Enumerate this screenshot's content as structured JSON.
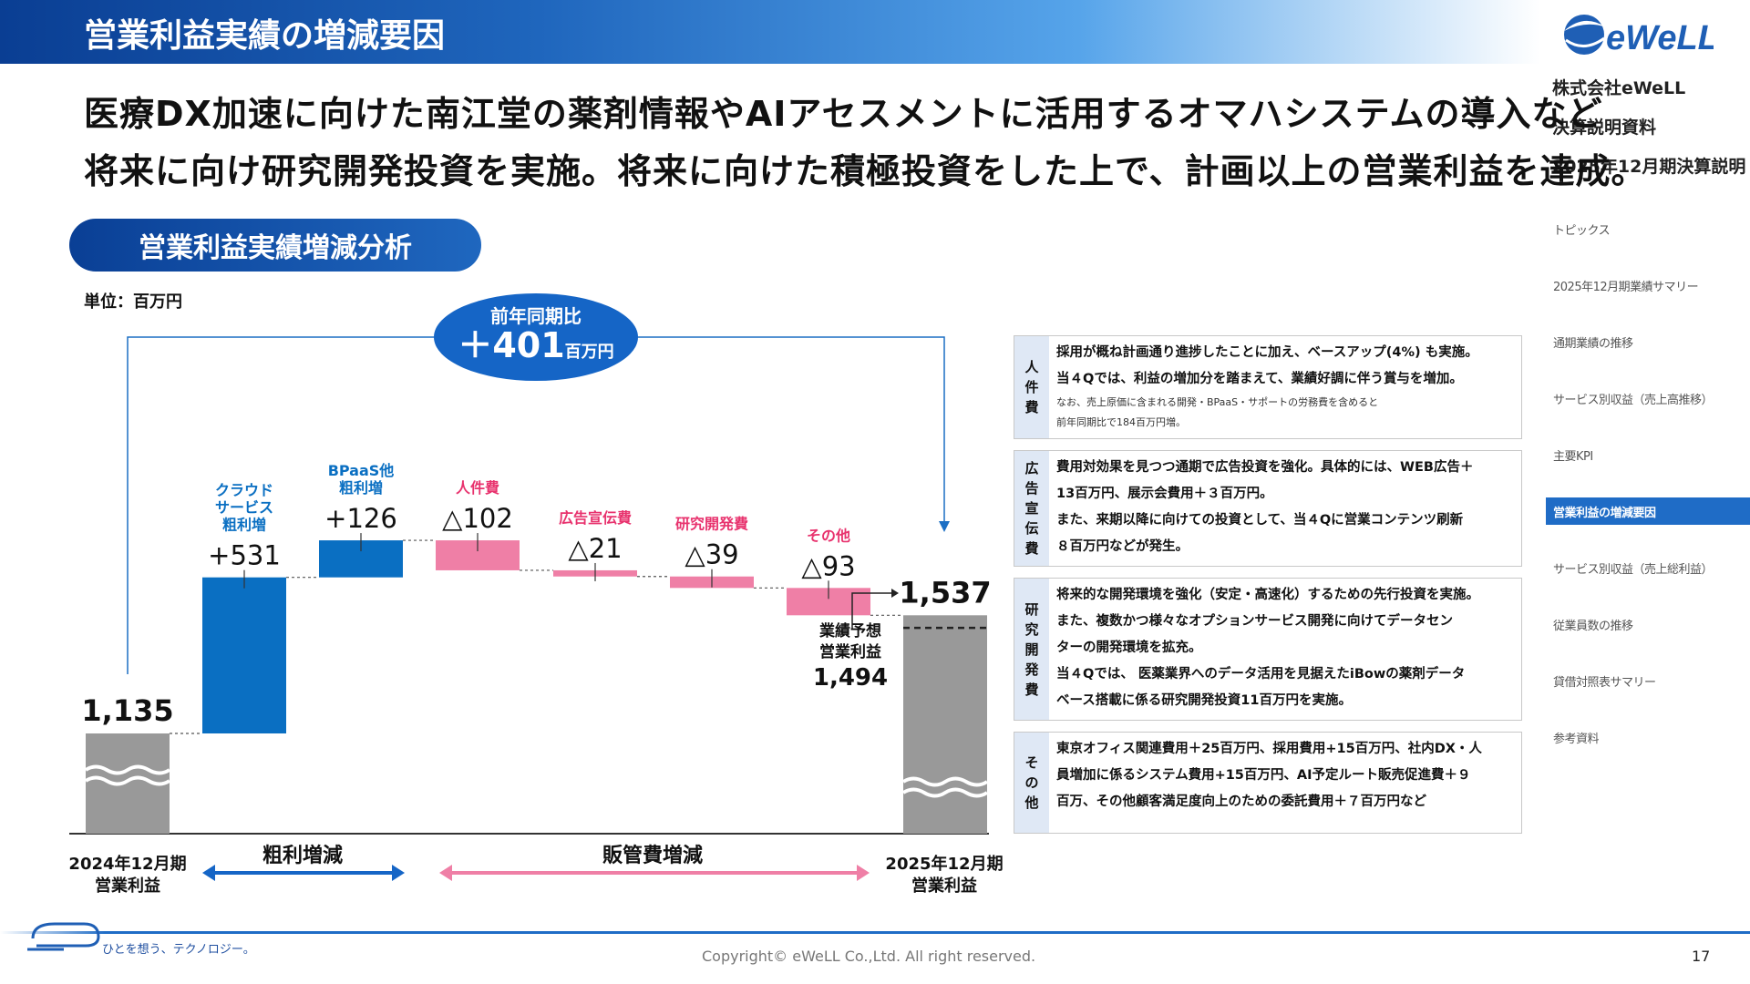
{
  "header": {
    "title": "営業利益実績の増減要因"
  },
  "sidebar": {
    "logo_text": "eWeLL",
    "company": "株式会社eWeLL",
    "doc_type": "決算説明資料",
    "period": "2025年12月期決算説明",
    "nav": [
      {
        "label": "トピックス"
      },
      {
        "label": "2025年12月期業績サマリー"
      },
      {
        "label": "通期業績の推移"
      },
      {
        "label": "サービス別収益（売上高推移）"
      },
      {
        "label": "主要KPI"
      },
      {
        "label": "営業利益の増減要因"
      },
      {
        "label": "サービス別収益（売上総利益）"
      },
      {
        "label": "従業員数の推移"
      },
      {
        "label": "貸借対照表サマリー"
      },
      {
        "label": "参考資料"
      }
    ]
  },
  "headline": {
    "line1": "医療DX加速に向けた南江堂の薬剤情報やAIアセスメントに活用するオマハシステムの導入など",
    "line2": "将来に向け研究開発投資を実施。将来に向けた積極投資をした上で、計画以上の営業利益を達成。"
  },
  "section_title": "営業利益実績増減分析",
  "unit_label": "単位：百万円",
  "yoy": {
    "label": "前年同期比",
    "value": "＋401",
    "unit": "百万円"
  },
  "forecast": {
    "line1": "業績予想",
    "line2": "営業利益",
    "value": "1,494"
  },
  "brackets": {
    "gross": "粗利増減",
    "sga": "販管費増減"
  },
  "chart_data": {
    "type": "waterfall",
    "unit": "百万円",
    "start": {
      "label": "2024年12月期\n営業利益",
      "value": 1135,
      "value_label": "1,135"
    },
    "steps": [
      {
        "label": "クラウド\nサービス\n粗利増",
        "delta": 531,
        "value_label": "+531",
        "color": "#0a6fc2"
      },
      {
        "label": "BPaaS他\n粗利増",
        "delta": 126,
        "value_label": "+126",
        "color": "#0a6fc2"
      },
      {
        "label": "人件費",
        "delta": -102,
        "value_label": "△102",
        "color": "#ef7fa6"
      },
      {
        "label": "広告宣伝費",
        "delta": -21,
        "value_label": "△21",
        "color": "#ef7fa6"
      },
      {
        "label": "研究開発費",
        "delta": -39,
        "value_label": "△39",
        "color": "#ef7fa6"
      },
      {
        "label": "その他",
        "delta": -93,
        "value_label": "△93",
        "color": "#ef7fa6"
      }
    ],
    "end": {
      "label": "2025年12月期\n営業利益",
      "value": 1537,
      "value_label": "1,537"
    },
    "forecast_value": 1494,
    "colors": {
      "total": "#999999",
      "increase": "#0a6fc2",
      "decrease": "#ef7fa6",
      "increase_label": "#0a6fc2",
      "decrease_label": "#e8336e"
    }
  },
  "details": [
    {
      "head": [
        "人",
        "件",
        "費"
      ],
      "lines": [
        "採用が概ね計画通り進捗したことに加え、ベースアップ(4%) も実施。",
        "当４Qでは、利益の増加分を踏まえて、業績好調に伴う賞与を増加。"
      ],
      "notes": [
        "なお、売上原価に含まれる開発・BPaaS・サポートの労務費を含めると",
        "前年同期比で184百万円増。"
      ]
    },
    {
      "head": [
        "広",
        "告",
        "宣",
        "伝",
        "費"
      ],
      "lines": [
        "費用対効果を見つつ通期で広告投資を強化。具体的には、WEB広告＋",
        "13百万円、展示会費用＋３百万円。",
        "また、来期以降に向けての投資として、当４Qに営業コンテンツ刷新",
        "８百万円などが発生。"
      ],
      "notes": []
    },
    {
      "head": [
        "研",
        "究",
        "開",
        "発",
        "費"
      ],
      "lines": [
        "将来的な開発環境を強化（安定・高速化）するための先行投資を実施。",
        "また、複数かつ様々なオプションサービス開発に向けてデータセン",
        "ターの開発環境を拡充。",
        "当４Qでは、 医薬業界へのデータ活用を見据えたiBowの薬剤データ",
        "ベース搭載に係る研究開発投資11百万円を実施。"
      ],
      "notes": []
    },
    {
      "head": [
        "そ",
        "の",
        "他"
      ],
      "lines": [
        "東京オフィス関連費用＋25百万円、採用費用+15百万円、社内DX・人",
        "員増加に係るシステム費用+15百万円、AI予定ルート販売促進費＋９",
        "百万、その他顧客満足度向上のための委託費用＋７百万円など"
      ],
      "notes": []
    }
  ],
  "footer": {
    "slogan": "ひとを想う、テクノロジー。",
    "copyright": "Copyright© eWeLL Co.,Ltd. All right reserved.",
    "page": "17"
  }
}
